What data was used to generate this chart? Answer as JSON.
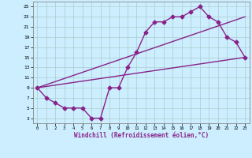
{
  "background_color": "#cceeff",
  "line_color": "#882288",
  "line_width": 1.0,
  "marker": "D",
  "marker_size": 2.5,
  "xlabel": "Windchill (Refroidissement éolien,°C)",
  "xlim": [
    -0.5,
    23.5
  ],
  "ylim": [
    2,
    26
  ],
  "xticks": [
    0,
    1,
    2,
    3,
    4,
    5,
    6,
    7,
    8,
    9,
    10,
    11,
    12,
    13,
    14,
    15,
    16,
    17,
    18,
    19,
    20,
    21,
    22,
    23
  ],
  "yticks": [
    3,
    5,
    7,
    9,
    11,
    13,
    15,
    17,
    19,
    21,
    23,
    25
  ],
  "grid_color": "#aacccc",
  "line1_x": [
    0,
    1,
    2,
    3,
    4,
    5,
    6,
    7,
    8,
    9,
    10,
    11,
    12,
    13,
    14,
    15,
    16,
    17,
    18,
    19,
    20,
    21,
    22,
    23
  ],
  "line1_y": [
    9,
    7,
    6,
    5,
    5,
    5,
    3,
    3,
    9,
    9,
    13,
    16,
    20,
    22,
    22,
    23,
    23,
    24,
    25,
    23,
    22,
    19,
    18,
    15
  ],
  "line2_x": [
    0,
    23
  ],
  "line2_y": [
    9,
    15
  ],
  "line3_x": [
    0,
    23
  ],
  "line3_y": [
    9,
    23
  ]
}
